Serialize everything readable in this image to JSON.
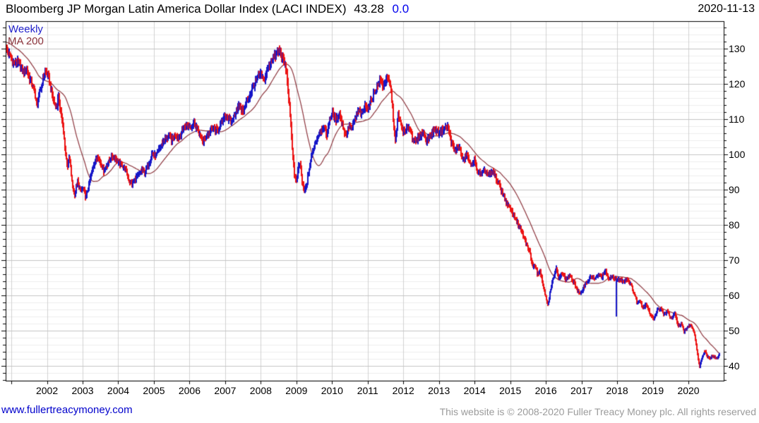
{
  "header": {
    "title": "Bloomberg JP Morgan Latin America Dollar Index (LACI INDEX)",
    "last_price": "43.28",
    "change": "0.0",
    "date": "2020-11-13"
  },
  "legend": {
    "frequency": "Weekly",
    "ma_label": "MA 200"
  },
  "footer": {
    "site": "www.fullertreacymoney.com",
    "copyright": "This website is © 2008-2020 Fuller Treacy Money plc. All rights reserved"
  },
  "chart_data": {
    "type": "line",
    "subtype": "weekly-range-bars-with-moving-average",
    "title": "Bloomberg JP Morgan Latin America Dollar Index (LACI INDEX)",
    "last_price": 43.28,
    "change": 0.0,
    "as_of": "2020-11-13",
    "frequency": "Weekly",
    "x_axis": {
      "min": 2000.84,
      "max": 2020.99,
      "tick_years": [
        2001,
        2002,
        2003,
        2004,
        2005,
        2006,
        2007,
        2008,
        2009,
        2010,
        2011,
        2012,
        2013,
        2014,
        2015,
        2016,
        2017,
        2018,
        2019,
        2020
      ],
      "label_years": [
        2002,
        2003,
        2004,
        2005,
        2006,
        2007,
        2008,
        2009,
        2010,
        2011,
        2012,
        2013,
        2014,
        2015,
        2016,
        2017,
        2018,
        2019,
        2020
      ]
    },
    "y_axis": {
      "min": 35.8,
      "max": 137.8,
      "side": "right",
      "major_ticks": [
        130,
        120,
        110,
        100,
        90,
        80,
        70,
        60,
        50,
        40
      ],
      "minor_step": 2
    },
    "grid": {
      "major_color": "#c4c4c4",
      "minor_color": "#ececec",
      "year_color": "#d2d2d2",
      "axis_color": "#000000"
    },
    "series": [
      {
        "name": "LACI Index weekly price",
        "style": "range-bars",
        "up_color": "#1616c8",
        "down_color": "#ec1212",
        "anchors": [
          [
            2000.84,
            130.3
          ],
          [
            2000.92,
            128.6
          ],
          [
            2001.0,
            127.3
          ],
          [
            2001.08,
            125.6
          ],
          [
            2001.16,
            126.4
          ],
          [
            2001.26,
            125.0
          ],
          [
            2001.35,
            123.4
          ],
          [
            2001.42,
            124.3
          ],
          [
            2001.5,
            121.8
          ],
          [
            2001.58,
            120.2
          ],
          [
            2001.66,
            116.8
          ],
          [
            2001.72,
            113.6
          ],
          [
            2001.8,
            117.5
          ],
          [
            2001.88,
            120.6
          ],
          [
            2001.95,
            123.8
          ],
          [
            2002.05,
            121.5
          ],
          [
            2002.13,
            117.5
          ],
          [
            2002.2,
            114.5
          ],
          [
            2002.27,
            113.4
          ],
          [
            2002.33,
            116.4
          ],
          [
            2002.4,
            112.0
          ],
          [
            2002.47,
            106.0
          ],
          [
            2002.54,
            99.0
          ],
          [
            2002.58,
            96.5
          ],
          [
            2002.63,
            99.2
          ],
          [
            2002.7,
            92.0
          ],
          [
            2002.77,
            88.6
          ],
          [
            2002.86,
            92.6
          ],
          [
            2002.95,
            89.5
          ],
          [
            2003.02,
            90.5
          ],
          [
            2003.1,
            87.8
          ],
          [
            2003.2,
            92.5
          ],
          [
            2003.3,
            97.0
          ],
          [
            2003.42,
            99.6
          ],
          [
            2003.52,
            97.5
          ],
          [
            2003.6,
            95.5
          ],
          [
            2003.72,
            97.5
          ],
          [
            2003.82,
            99.5
          ],
          [
            2003.92,
            99.0
          ],
          [
            2004.02,
            97.5
          ],
          [
            2004.12,
            97.0
          ],
          [
            2004.22,
            95.5
          ],
          [
            2004.3,
            92.6
          ],
          [
            2004.4,
            91.6
          ],
          [
            2004.5,
            93.5
          ],
          [
            2004.6,
            94.6
          ],
          [
            2004.68,
            95.6
          ],
          [
            2004.76,
            94.8
          ],
          [
            2004.86,
            97.5
          ],
          [
            2004.95,
            100.4
          ],
          [
            2005.05,
            99.6
          ],
          [
            2005.15,
            101.6
          ],
          [
            2005.28,
            103.8
          ],
          [
            2005.42,
            105.2
          ],
          [
            2005.5,
            104.2
          ],
          [
            2005.6,
            105.8
          ],
          [
            2005.7,
            104.8
          ],
          [
            2005.82,
            107.3
          ],
          [
            2005.92,
            108.4
          ],
          [
            2006.02,
            108.0
          ],
          [
            2006.12,
            108.9
          ],
          [
            2006.22,
            107.3
          ],
          [
            2006.3,
            105.0
          ],
          [
            2006.38,
            103.4
          ],
          [
            2006.48,
            105.2
          ],
          [
            2006.58,
            106.5
          ],
          [
            2006.68,
            107.4
          ],
          [
            2006.78,
            106.8
          ],
          [
            2006.88,
            108.8
          ],
          [
            2007.0,
            111.3
          ],
          [
            2007.1,
            110.0
          ],
          [
            2007.18,
            108.9
          ],
          [
            2007.3,
            112.3
          ],
          [
            2007.4,
            113.8
          ],
          [
            2007.5,
            111.9
          ],
          [
            2007.6,
            114.5
          ],
          [
            2007.7,
            116.8
          ],
          [
            2007.8,
            119.5
          ],
          [
            2007.9,
            121.5
          ],
          [
            2008.0,
            122.8
          ],
          [
            2008.08,
            120.9
          ],
          [
            2008.18,
            123.6
          ],
          [
            2008.3,
            126.8
          ],
          [
            2008.42,
            128.2
          ],
          [
            2008.52,
            129.4
          ],
          [
            2008.6,
            127.6
          ],
          [
            2008.68,
            125.2
          ],
          [
            2008.76,
            119.5
          ],
          [
            2008.82,
            112.5
          ],
          [
            2008.88,
            103.5
          ],
          [
            2008.94,
            95.0
          ],
          [
            2009.0,
            91.5
          ],
          [
            2009.05,
            95.8
          ],
          [
            2009.1,
            97.5
          ],
          [
            2009.16,
            92.0
          ],
          [
            2009.22,
            89.0
          ],
          [
            2009.28,
            91.5
          ],
          [
            2009.34,
            94.2
          ],
          [
            2009.45,
            100.5
          ],
          [
            2009.56,
            104.0
          ],
          [
            2009.66,
            106.5
          ],
          [
            2009.76,
            108.0
          ],
          [
            2009.84,
            105.5
          ],
          [
            2009.94,
            110.3
          ],
          [
            2010.02,
            111.5
          ],
          [
            2010.12,
            109.5
          ],
          [
            2010.2,
            112.0
          ],
          [
            2010.3,
            108.0
          ],
          [
            2010.38,
            105.3
          ],
          [
            2010.48,
            108.5
          ],
          [
            2010.56,
            107.0
          ],
          [
            2010.66,
            110.3
          ],
          [
            2010.76,
            112.5
          ],
          [
            2010.84,
            111.3
          ],
          [
            2010.94,
            114.0
          ],
          [
            2011.02,
            113.0
          ],
          [
            2011.1,
            115.5
          ],
          [
            2011.2,
            117.5
          ],
          [
            2011.28,
            119.4
          ],
          [
            2011.36,
            120.8
          ],
          [
            2011.44,
            119.2
          ],
          [
            2011.52,
            121.8
          ],
          [
            2011.6,
            120.5
          ],
          [
            2011.68,
            116.5
          ],
          [
            2011.78,
            103.0
          ],
          [
            2011.86,
            111.3
          ],
          [
            2011.94,
            108.0
          ],
          [
            2012.04,
            106.0
          ],
          [
            2012.14,
            108.0
          ],
          [
            2012.24,
            105.2
          ],
          [
            2012.35,
            103.4
          ],
          [
            2012.45,
            105.0
          ],
          [
            2012.55,
            106.3
          ],
          [
            2012.65,
            103.8
          ],
          [
            2012.78,
            105.8
          ],
          [
            2012.9,
            107.0
          ],
          [
            2013.0,
            106.3
          ],
          [
            2013.12,
            106.9
          ],
          [
            2013.25,
            107.9
          ],
          [
            2013.35,
            103.0
          ],
          [
            2013.45,
            100.6
          ],
          [
            2013.56,
            102.5
          ],
          [
            2013.68,
            98.2
          ],
          [
            2013.78,
            100.2
          ],
          [
            2013.88,
            96.6
          ],
          [
            2013.98,
            98.5
          ],
          [
            2014.1,
            95.2
          ],
          [
            2014.2,
            94.3
          ],
          [
            2014.3,
            95.3
          ],
          [
            2014.42,
            94.2
          ],
          [
            2014.52,
            94.9
          ],
          [
            2014.6,
            93.5
          ],
          [
            2014.7,
            91.3
          ],
          [
            2014.78,
            89.2
          ],
          [
            2014.86,
            87.2
          ],
          [
            2014.96,
            85.2
          ],
          [
            2015.06,
            83.2
          ],
          [
            2015.16,
            81.4
          ],
          [
            2015.26,
            79.4
          ],
          [
            2015.35,
            77.5
          ],
          [
            2015.44,
            74.9
          ],
          [
            2015.54,
            72.4
          ],
          [
            2015.64,
            67.9
          ],
          [
            2015.7,
            68.5
          ],
          [
            2015.78,
            65.9
          ],
          [
            2015.84,
            67.3
          ],
          [
            2015.93,
            62.5
          ],
          [
            2016.0,
            59.9
          ],
          [
            2016.06,
            56.9
          ],
          [
            2016.12,
            61.0
          ],
          [
            2016.2,
            65.0
          ],
          [
            2016.28,
            67.8
          ],
          [
            2016.36,
            64.8
          ],
          [
            2016.46,
            66.2
          ],
          [
            2016.56,
            64.6
          ],
          [
            2016.66,
            65.6
          ],
          [
            2016.78,
            63.8
          ],
          [
            2016.9,
            61.0
          ],
          [
            2016.98,
            60.3
          ],
          [
            2017.08,
            62.8
          ],
          [
            2017.18,
            64.2
          ],
          [
            2017.28,
            65.4
          ],
          [
            2017.38,
            64.6
          ],
          [
            2017.48,
            65.8
          ],
          [
            2017.58,
            65.2
          ],
          [
            2017.68,
            67.0
          ],
          [
            2017.78,
            64.4
          ],
          [
            2017.88,
            65.6
          ],
          [
            2017.98,
            64.2
          ],
          [
            2018.08,
            64.6
          ],
          [
            2018.18,
            64.0
          ],
          [
            2018.28,
            64.8
          ],
          [
            2018.38,
            63.2
          ],
          [
            2018.48,
            60.4
          ],
          [
            2018.56,
            57.8
          ],
          [
            2018.64,
            58.8
          ],
          [
            2018.74,
            56.4
          ],
          [
            2018.82,
            57.8
          ],
          [
            2018.92,
            54.8
          ],
          [
            2019.02,
            53.2
          ],
          [
            2019.12,
            55.8
          ],
          [
            2019.22,
            56.2
          ],
          [
            2019.32,
            54.6
          ],
          [
            2019.42,
            55.4
          ],
          [
            2019.52,
            53.4
          ],
          [
            2019.62,
            54.8
          ],
          [
            2019.7,
            51.5
          ],
          [
            2019.8,
            51.8
          ],
          [
            2019.88,
            49.8
          ],
          [
            2019.98,
            51.0
          ],
          [
            2020.06,
            51.6
          ],
          [
            2020.14,
            50.4
          ],
          [
            2020.2,
            47.5
          ],
          [
            2020.26,
            42.5
          ],
          [
            2020.31,
            39.8
          ],
          [
            2020.38,
            42.8
          ],
          [
            2020.46,
            44.6
          ],
          [
            2020.54,
            42.6
          ],
          [
            2020.62,
            42.2
          ],
          [
            2020.7,
            43.0
          ],
          [
            2020.78,
            41.8
          ],
          [
            2020.87,
            43.28
          ]
        ]
      },
      {
        "name": "MA 200",
        "style": "line",
        "color": "#8c343c",
        "window_weeks": 40
      }
    ],
    "spikes": [
      {
        "t": 2017.98,
        "low": 54.0,
        "color": "#1616c8"
      }
    ]
  }
}
